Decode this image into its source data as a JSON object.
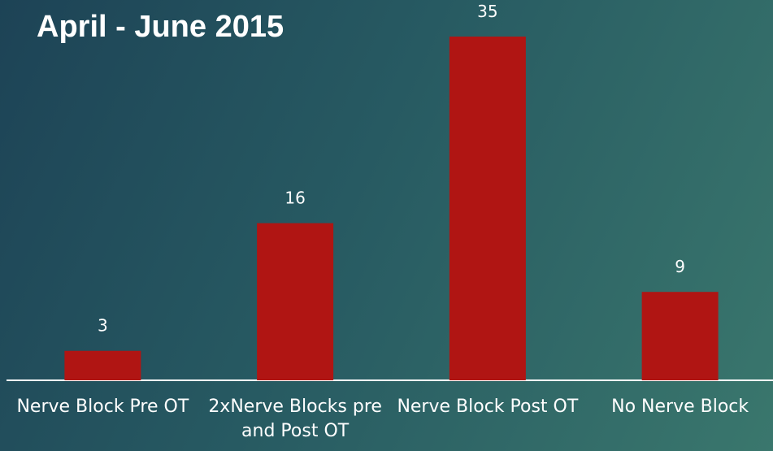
{
  "chart_data": {
    "type": "bar",
    "title": "April - June 2015",
    "categories": [
      "Nerve Block Pre OT",
      "2xNerve Blocks pre and Post OT",
      "Nerve Block Post OT",
      "No Nerve Block"
    ],
    "values": [
      3,
      16,
      35,
      9
    ],
    "color": "#b01513"
  }
}
